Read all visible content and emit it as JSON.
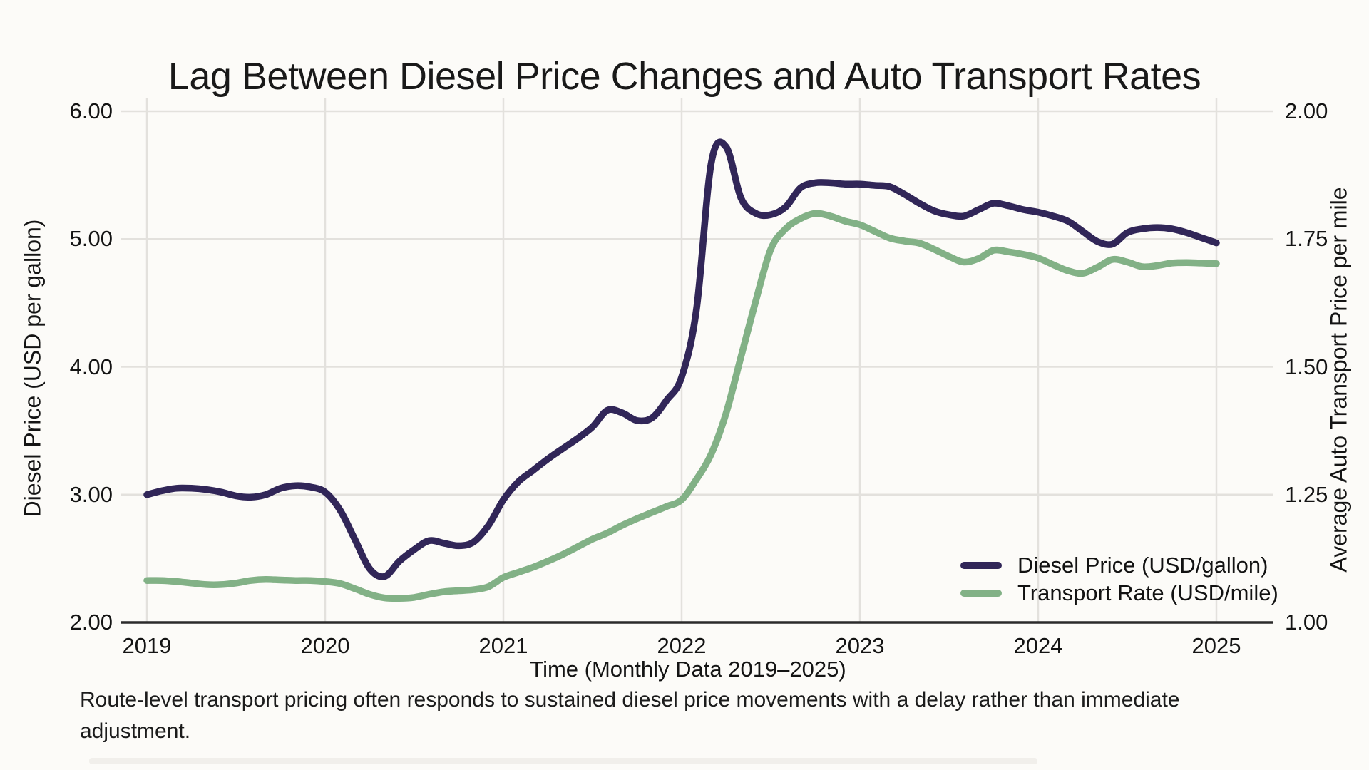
{
  "title": "Lag Between Diesel Price Changes and Auto Transport Rates",
  "axes": {
    "left": {
      "label": "Diesel Price (USD per gallon)",
      "ticks": [
        "6.00",
        "5.00",
        "4.00",
        "3.00",
        "2.00"
      ]
    },
    "right": {
      "label": "Average Auto Transport Price per mile",
      "ticks": [
        "2.00",
        "1.75",
        "1.50",
        "1.25",
        "1.00"
      ]
    },
    "x": {
      "label": "Time (Monthly Data 2019–2025)",
      "ticks": [
        "2019",
        "2020",
        "2021",
        "2022",
        "2023",
        "2024",
        "2025"
      ]
    }
  },
  "legend": {
    "items": [
      {
        "label": "Diesel Price (USD/gallon)",
        "color": "#312658"
      },
      {
        "label": "Transport Rate (USD/mile)",
        "color": "#82b186"
      }
    ]
  },
  "caption": "Route-level transport pricing often responds to sustained diesel price movements with a delay rather than immediate adjustment.",
  "colors": {
    "diesel_line": "#312658",
    "transport_line": "#82b186",
    "gridline": "#e3e1dd",
    "axis_line": "#2b2b2b",
    "background": "#fcfbf8"
  },
  "chart_data": {
    "type": "line",
    "title": "Lag Between Diesel Price Changes and Auto Transport Rates",
    "xlabel": "Time (Monthly Data 2019–2025)",
    "x_monthly_from": "2019-01",
    "x_monthly_to": "2025-01",
    "x_tick_years": [
      2019,
      2020,
      2021,
      2022,
      2023,
      2024,
      2025
    ],
    "left_axis": {
      "label": "Diesel Price (USD per gallon)",
      "ylim": [
        2.0,
        6.0
      ],
      "tick_step": 1.0
    },
    "right_axis": {
      "label": "Average Auto Transport Price per mile",
      "ylim": [
        1.0,
        2.0
      ],
      "tick_step": 0.25
    },
    "grid": true,
    "legend_position": "lower right",
    "series": [
      {
        "name": "Diesel Price (USD/gallon)",
        "axis": "left",
        "color": "#312658",
        "values": [
          3.0,
          3.03,
          3.05,
          3.05,
          3.04,
          3.02,
          2.99,
          2.98,
          3.0,
          3.05,
          3.07,
          3.06,
          3.02,
          2.88,
          2.65,
          2.42,
          2.36,
          2.48,
          2.57,
          2.64,
          2.62,
          2.6,
          2.63,
          2.76,
          2.96,
          3.1,
          3.19,
          3.28,
          3.36,
          3.44,
          3.53,
          3.66,
          3.64,
          3.58,
          3.6,
          3.74,
          3.92,
          4.45,
          5.6,
          5.72,
          5.32,
          5.2,
          5.19,
          5.25,
          5.4,
          5.44,
          5.44,
          5.43,
          5.43,
          5.42,
          5.41,
          5.35,
          5.28,
          5.22,
          5.19,
          5.18,
          5.23,
          5.28,
          5.26,
          5.23,
          5.21,
          5.18,
          5.14,
          5.06,
          4.98,
          4.96,
          5.05,
          5.08,
          5.09,
          5.08,
          5.05,
          5.01,
          4.97
        ]
      },
      {
        "name": "Transport Rate (USD/mile)",
        "axis": "right",
        "color": "#82b186",
        "values": [
          1.082,
          1.082,
          1.08,
          1.077,
          1.074,
          1.074,
          1.077,
          1.082,
          1.084,
          1.083,
          1.082,
          1.082,
          1.08,
          1.076,
          1.066,
          1.055,
          1.048,
          1.047,
          1.049,
          1.055,
          1.06,
          1.062,
          1.064,
          1.07,
          1.088,
          1.098,
          1.108,
          1.12,
          1.133,
          1.148,
          1.163,
          1.175,
          1.19,
          1.203,
          1.215,
          1.227,
          1.24,
          1.28,
          1.33,
          1.41,
          1.52,
          1.63,
          1.73,
          1.77,
          1.79,
          1.8,
          1.795,
          1.785,
          1.778,
          1.765,
          1.752,
          1.746,
          1.742,
          1.73,
          1.716,
          1.705,
          1.712,
          1.728,
          1.725,
          1.72,
          1.713,
          1.7,
          1.688,
          1.683,
          1.695,
          1.71,
          1.705,
          1.696,
          1.698,
          1.703,
          1.704,
          1.703,
          1.702
        ]
      }
    ]
  }
}
